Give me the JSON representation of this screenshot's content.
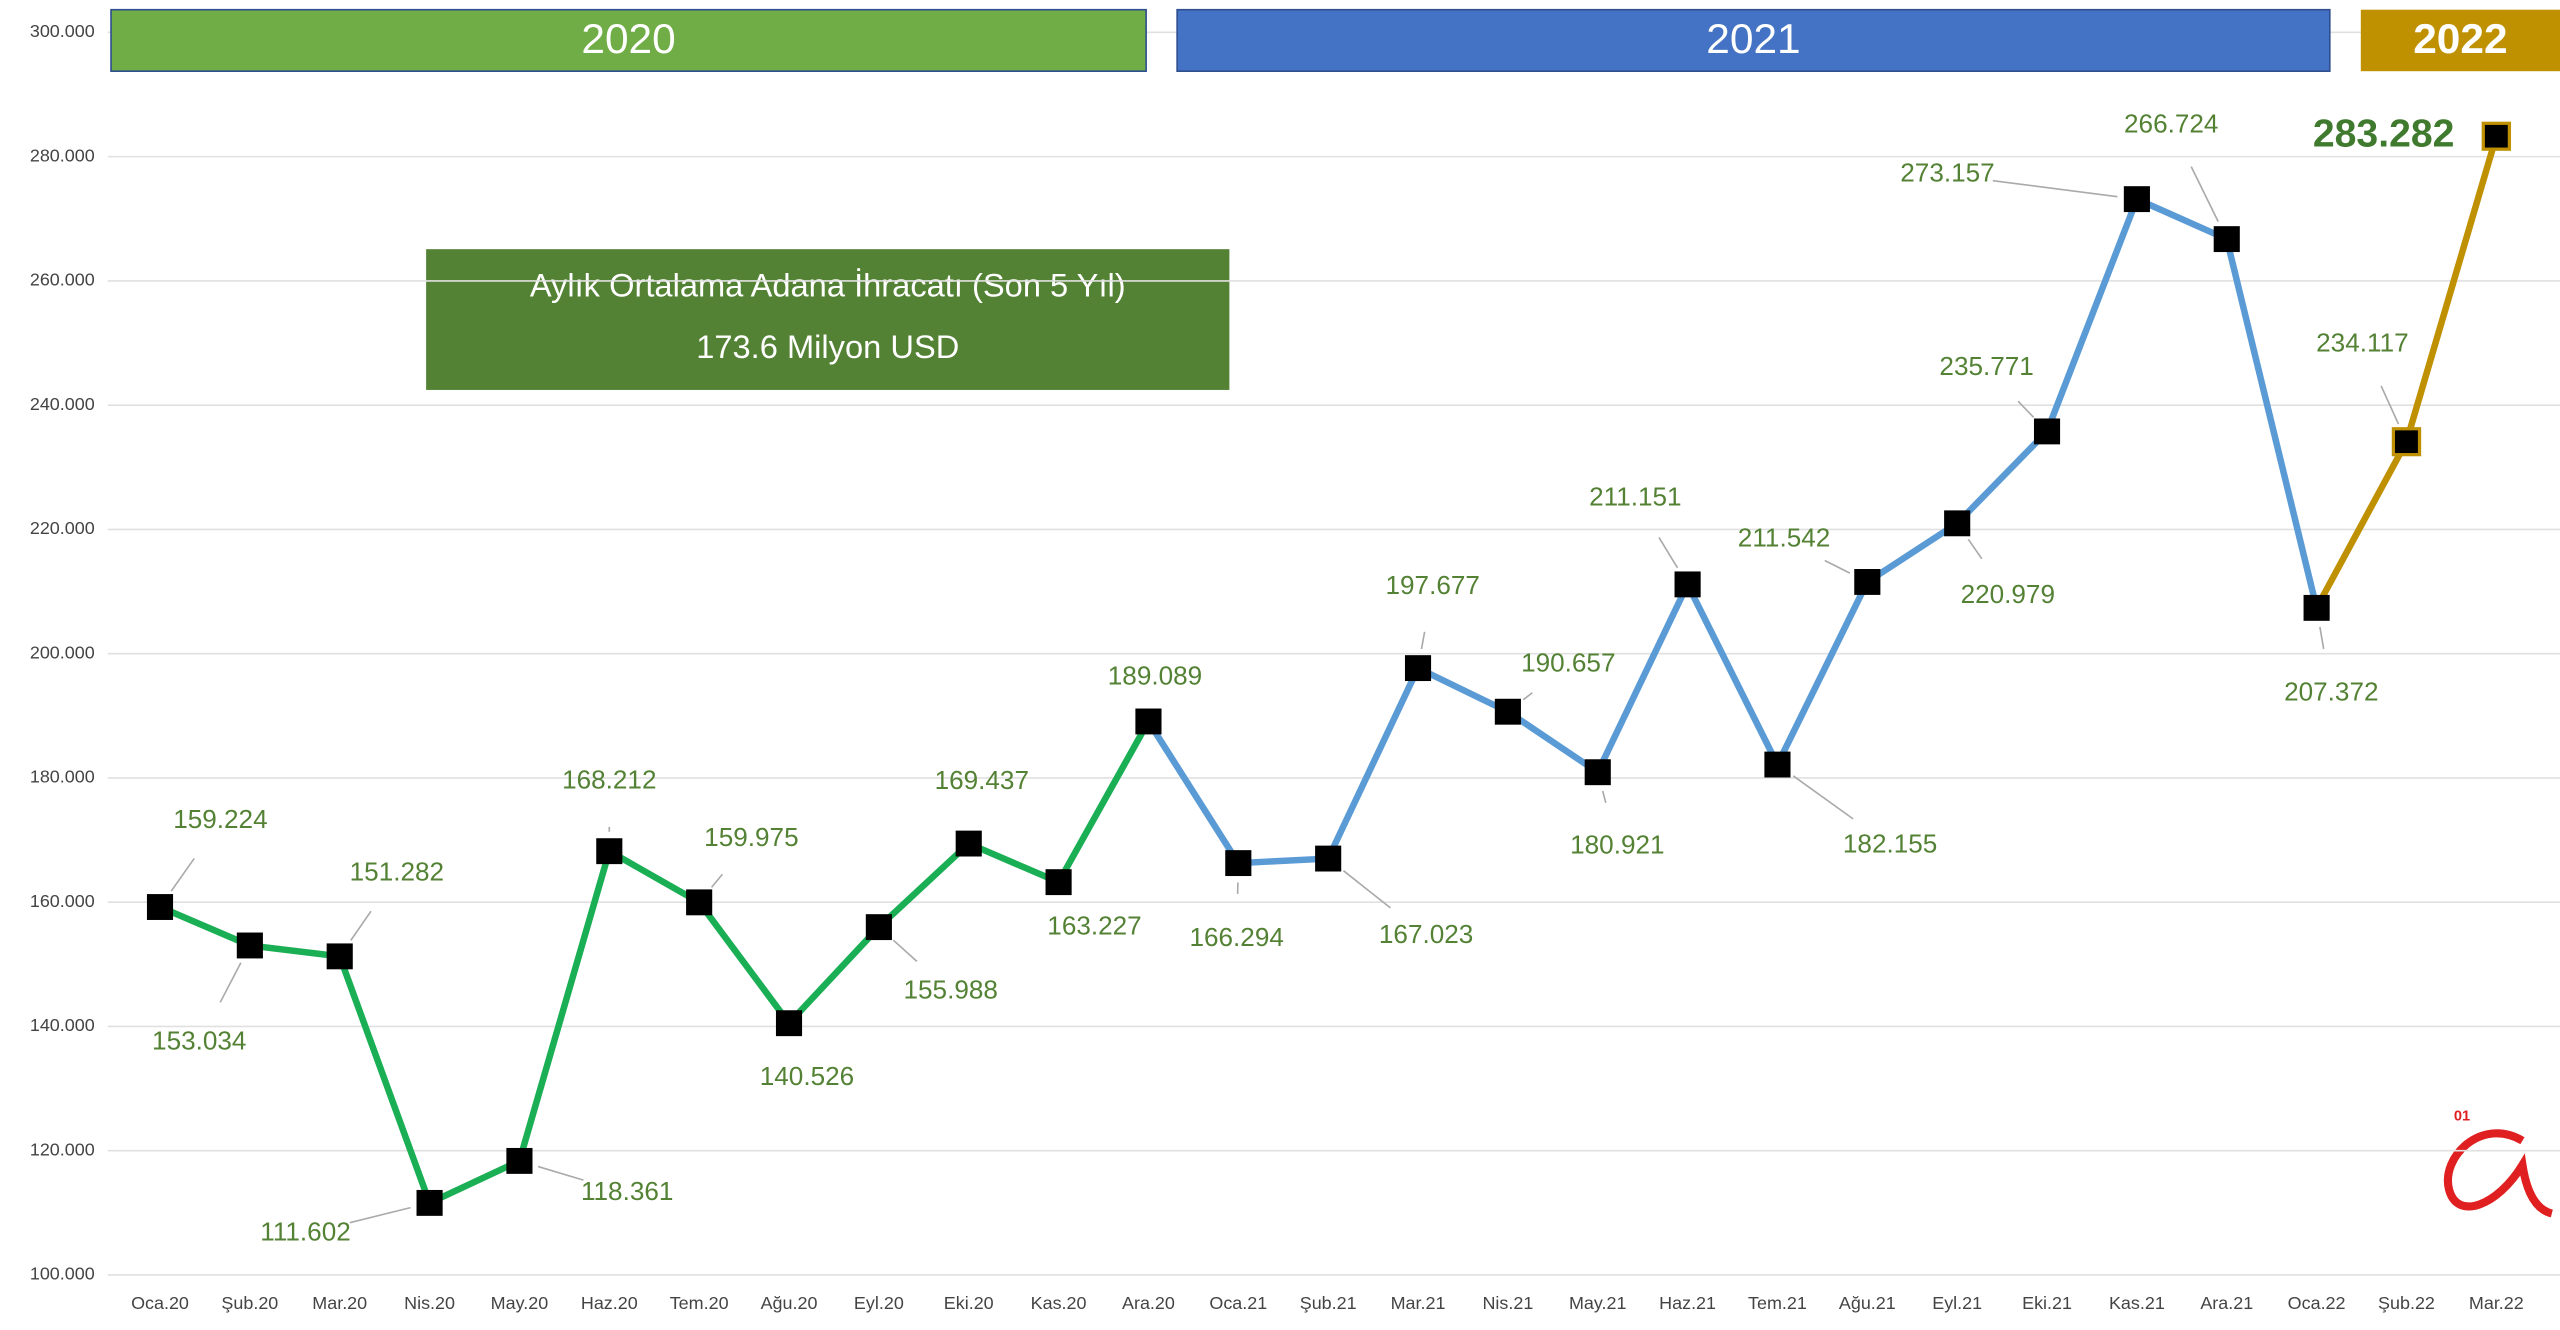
{
  "chart_data": {
    "type": "line",
    "annotation": {
      "title": "Aylık Ortalama Adana İhracatı (Son 5 Yıl)",
      "text": "173.6 Milyon USD",
      "color": "#548235"
    },
    "year_headers": [
      {
        "label": "2020",
        "color": "#70ad47"
      },
      {
        "label": "2021",
        "color": "#4472c4"
      },
      {
        "label": "2022",
        "color": "#bf9000"
      }
    ],
    "categories": [
      "Oca.20",
      "Şub.20",
      "Mar.20",
      "Nis.20",
      "May.20",
      "Haz.20",
      "Tem.20",
      "Ağu.20",
      "Eyl.20",
      "Eki.20",
      "Kas.20",
      "Ara.20",
      "Oca.21",
      "Şub.21",
      "Mar.21",
      "Nis.21",
      "May.21",
      "Haz.21",
      "Tem.21",
      "Ağu.21",
      "Eyl.21",
      "Eki.21",
      "Kas.21",
      "Ara.21",
      "Oca.22",
      "Şub.22",
      "Mar.22"
    ],
    "values": [
      159224,
      153034,
      151282,
      111602,
      118361,
      168212,
      159975,
      140526,
      155988,
      169437,
      163227,
      189089,
      166294,
      167023,
      197677,
      190657,
      180921,
      211151,
      182155,
      211542,
      220979,
      235771,
      273157,
      266724,
      207372,
      234117,
      283282
    ],
    "value_labels": [
      "159.224",
      "153.034",
      "151.282",
      "111.602",
      "118.361",
      "168.212",
      "159.975",
      "140.526",
      "155.988",
      "169.437",
      "163.227",
      "189.089",
      "166.294",
      "167.023",
      "197.677",
      "190.657",
      "180.921",
      "211.151",
      "182.155",
      "211.542",
      "220.979",
      "235.771",
      "273.157",
      "266.724",
      "207.372",
      "234.117",
      "283.282"
    ],
    "segments": [
      {
        "from": "Oca.20",
        "to": "Ara.20",
        "color": "#1aaf54"
      },
      {
        "from": "Ara.20",
        "to": "Oca.22",
        "color": "#5b9bd5"
      },
      {
        "from": "Oca.22",
        "to": "Mar.22",
        "color": "#bf9000"
      }
    ],
    "marker_color": "#000000",
    "ylim": [
      100000,
      300000
    ],
    "yticks": [
      {
        "value": 100000,
        "label": "100.000"
      },
      {
        "value": 120000,
        "label": "120.000"
      },
      {
        "value": 140000,
        "label": "140.000"
      },
      {
        "value": 160000,
        "label": "160.000"
      },
      {
        "value": 180000,
        "label": "180.000"
      },
      {
        "value": 200000,
        "label": "200.000"
      },
      {
        "value": 220000,
        "label": "220.000"
      },
      {
        "value": 240000,
        "label": "240.000"
      },
      {
        "value": 260000,
        "label": "260.000"
      },
      {
        "value": 280000,
        "label": "280.000"
      },
      {
        "value": 300000,
        "label": "300.000"
      }
    ],
    "grid": true
  }
}
